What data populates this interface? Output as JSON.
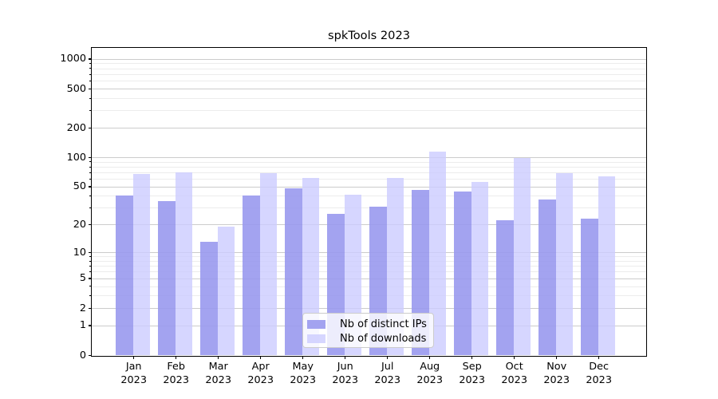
{
  "title": "spkTools 2023",
  "chart_data": {
    "type": "bar",
    "title": "spkTools 2023",
    "categories": [
      "Jan",
      "Feb",
      "Mar",
      "Apr",
      "May",
      "Jun",
      "Jul",
      "Aug",
      "Sep",
      "Oct",
      "Nov",
      "Dec"
    ],
    "category_year": "2023",
    "series": [
      {
        "name": "Nb of distinct IPs",
        "color": "#9999ee",
        "opacity": 0.9,
        "values": [
          40,
          35,
          13,
          40,
          48,
          26,
          31,
          46,
          44,
          22,
          37,
          23
        ]
      },
      {
        "name": "Nb of downloads",
        "color": "#ccccff",
        "opacity": 0.8,
        "values": [
          67,
          70,
          19,
          69,
          61,
          41,
          61,
          113,
          56,
          98,
          68,
          64
        ]
      }
    ],
    "xlabel": "",
    "ylabel": "",
    "y_scale": "log10(value+1)",
    "y_major_ticks": [
      0,
      1,
      2,
      5,
      10,
      20,
      50,
      100,
      200,
      500,
      1000
    ],
    "y_minor_ticks": [
      3,
      4,
      6,
      7,
      8,
      9,
      30,
      40,
      60,
      70,
      80,
      90,
      300,
      400,
      600,
      700,
      800,
      900
    ],
    "ylim_top_value": 1300,
    "grid": true,
    "legend_position": "lower center"
  },
  "colors": {
    "background": "#ffffff",
    "spine": "#000000",
    "grid_major": "#cccccc",
    "grid_minor": "#ececec",
    "text": "#000000",
    "legend_border": "#cccccc"
  }
}
